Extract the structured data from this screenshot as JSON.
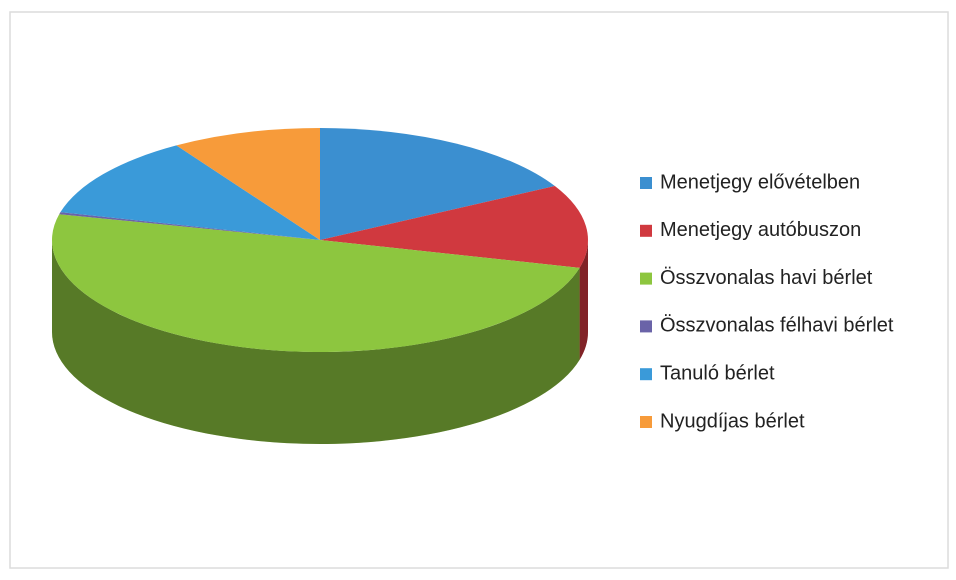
{
  "chart_data": {
    "type": "pie",
    "categories": [
      "Menetjegy elővételben",
      "Menetjegy autóbuszon",
      "Összvonalas havi bérlet",
      "Összvonalas félhavi bérlet",
      "Tanuló bérlet",
      "Nyugdíjas bérlet"
    ],
    "values": [
      17,
      12,
      49.7,
      0.3,
      12,
      9
    ],
    "colors": [
      "#3b8fd0",
      "#d0393f",
      "#8dc63f",
      "#6a63a8",
      "#3a9ad9",
      "#f79b3a"
    ],
    "legend": "right"
  }
}
